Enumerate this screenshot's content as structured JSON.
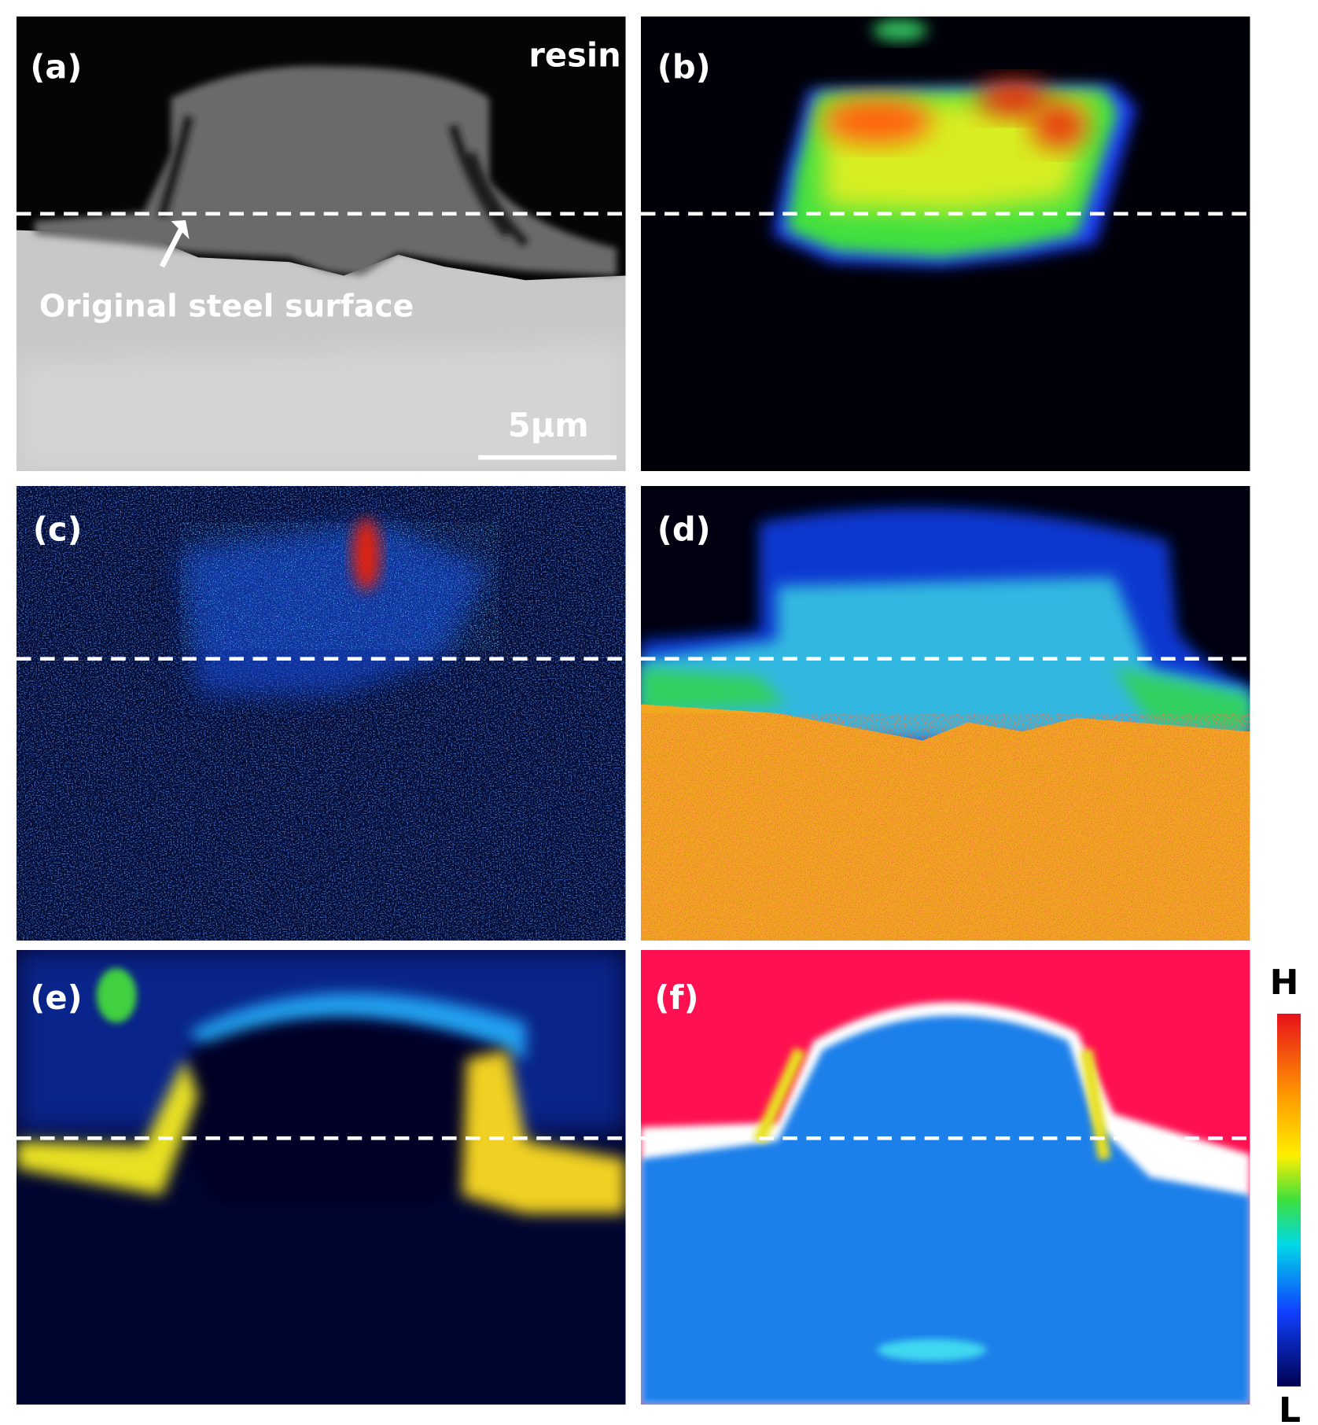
{
  "panels": [
    {
      "label": "(a)"
    },
    {
      "label": "(b)"
    },
    {
      "label": "(c)"
    },
    {
      "label": "(d)"
    },
    {
      "label": "(e)"
    },
    {
      "label": "(f)"
    }
  ],
  "annotations": {
    "resin": "resin",
    "arrow_label": "Original steel surface",
    "scale_bar": "5μm"
  },
  "colorbar": {
    "high": "H",
    "low": "L"
  }
}
